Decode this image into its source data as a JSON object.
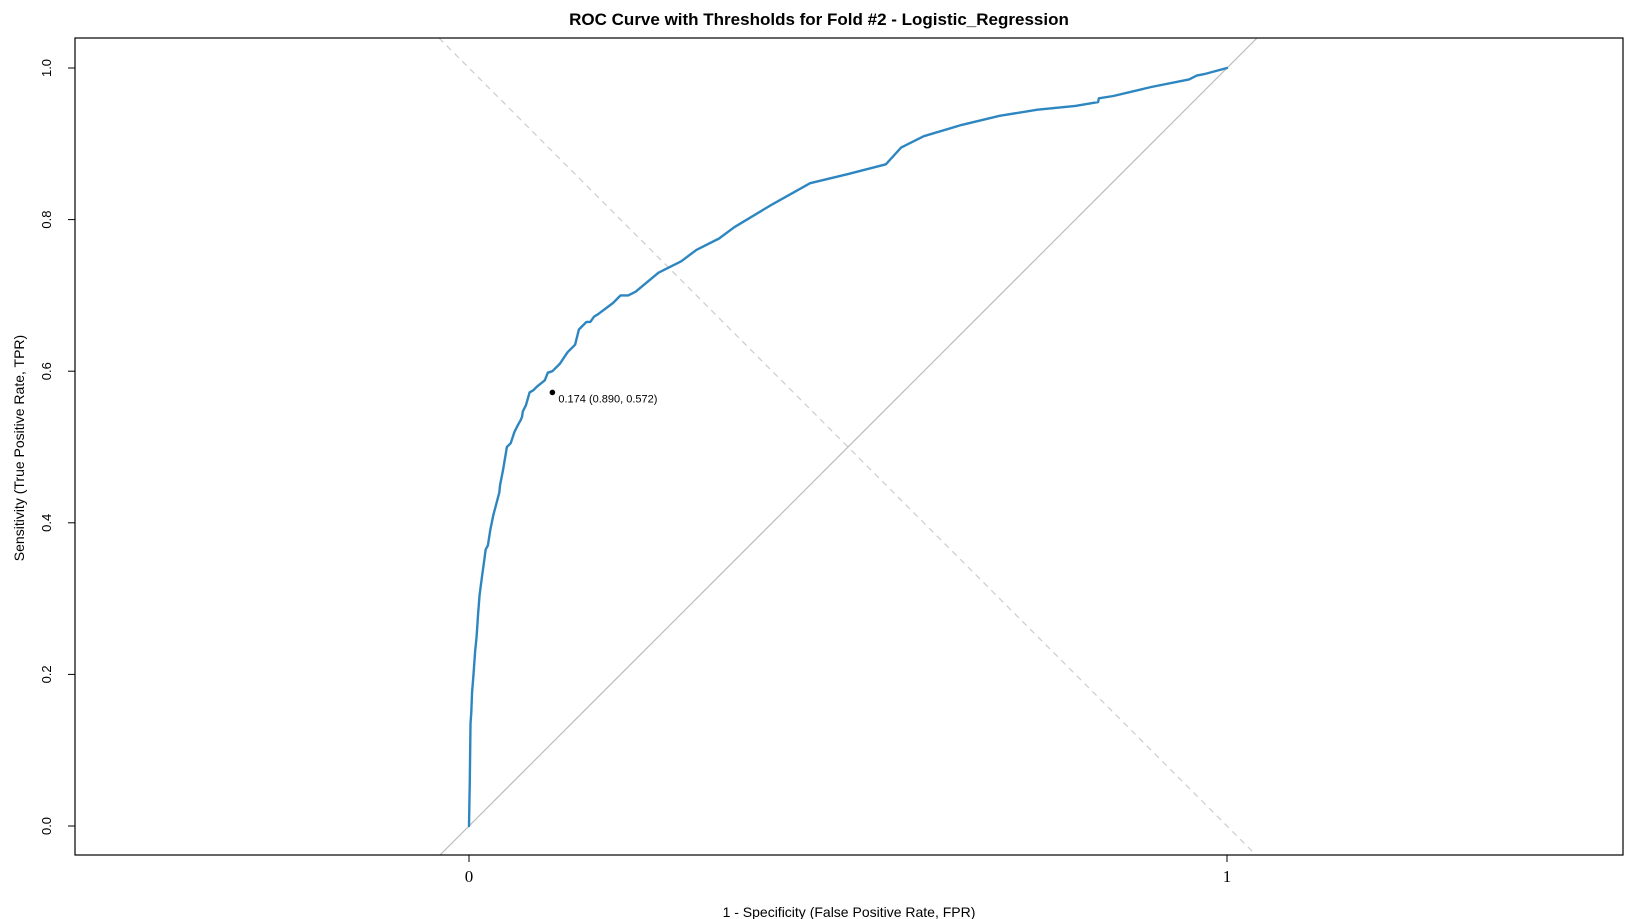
{
  "chart_data": {
    "type": "line",
    "title": "ROC Curve with Thresholds for Fold #2 - Logistic_Regression",
    "xlabel": "1 - Specificity (False Positive Rate, FPR)",
    "ylabel": "Sensitivity (True Positive Rate, TPR)",
    "xlim": [
      -0.52,
      1.52
    ],
    "ylim": [
      -0.04,
      1.04
    ],
    "x_ticks": [
      0,
      1
    ],
    "x_tick_labels": [
      "0",
      "1"
    ],
    "y_ticks": [
      0.0,
      0.2,
      0.4,
      0.6,
      0.8,
      1.0
    ],
    "y_tick_labels": [
      "0.0",
      "0.2",
      "0.4",
      "0.6",
      "0.8",
      "1.0"
    ],
    "grid": false,
    "colors": {
      "curve": "#2E86C1",
      "diagonal": "#BBBBBB",
      "antidiagonal": "#CCCCCC",
      "point": "#000000"
    },
    "reference_lines": [
      {
        "name": "chance",
        "style": "solid",
        "from": [
          0,
          0
        ],
        "to": [
          1,
          1
        ]
      },
      {
        "name": "anti-diagonal",
        "style": "dashed",
        "from": [
          0,
          1
        ],
        "to": [
          1,
          0
        ]
      }
    ],
    "series": [
      {
        "x": [
          0.0,
          0.001,
          0.002,
          0.003,
          0.004,
          0.006,
          0.008,
          0.01,
          0.012,
          0.014,
          0.016,
          0.018,
          0.02,
          0.022,
          0.025,
          0.028,
          0.032,
          0.036,
          0.04,
          0.041,
          0.045,
          0.05,
          0.055,
          0.06,
          0.065,
          0.068,
          0.07,
          0.071,
          0.075,
          0.08,
          0.085,
          0.09,
          0.1,
          0.104,
          0.11,
          0.12,
          0.13,
          0.14,
          0.145,
          0.155,
          0.16,
          0.165,
          0.17,
          0.19,
          0.2,
          0.21,
          0.22,
          0.25,
          0.28,
          0.3,
          0.33,
          0.35,
          0.4,
          0.45,
          0.5,
          0.55,
          0.57,
          0.6,
          0.65,
          0.7,
          0.75,
          0.8,
          0.83,
          0.831,
          0.85,
          0.9,
          0.95,
          0.96,
          0.97,
          1.0
        ],
        "y": [
          0.0,
          0.06,
          0.135,
          0.15,
          0.175,
          0.2,
          0.23,
          0.25,
          0.28,
          0.305,
          0.32,
          0.335,
          0.35,
          0.365,
          0.37,
          0.39,
          0.41,
          0.425,
          0.44,
          0.45,
          0.47,
          0.5,
          0.505,
          0.52,
          0.53,
          0.535,
          0.54,
          0.547,
          0.555,
          0.572,
          0.575,
          0.58,
          0.588,
          0.598,
          0.6,
          0.61,
          0.625,
          0.635,
          0.655,
          0.665,
          0.665,
          0.672,
          0.675,
          0.69,
          0.7,
          0.7,
          0.705,
          0.73,
          0.745,
          0.76,
          0.775,
          0.79,
          0.82,
          0.848,
          0.86,
          0.873,
          0.895,
          0.91,
          0.925,
          0.937,
          0.945,
          0.95,
          0.955,
          0.96,
          0.963,
          0.975,
          0.985,
          0.99,
          0.992,
          1.0
        ]
      }
    ],
    "highlight_point": {
      "x": 0.11,
      "y": 0.572,
      "label": "0.174 (0.890, 0.572)"
    }
  }
}
